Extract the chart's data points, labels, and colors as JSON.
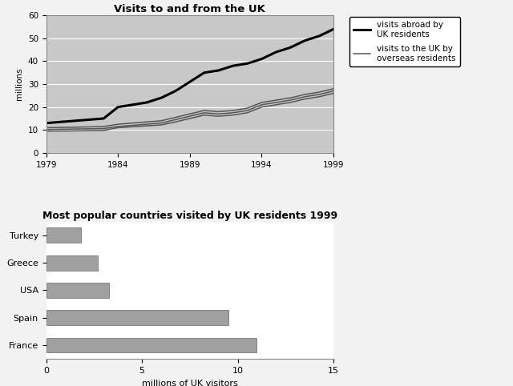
{
  "line_title": "Visits to and from the UK",
  "line_ylabel": "millions",
  "line_years": [
    1979,
    1981,
    1983,
    1984,
    1985,
    1986,
    1987,
    1988,
    1989,
    1990,
    1991,
    1992,
    1993,
    1994,
    1995,
    1996,
    1997,
    1998,
    1999
  ],
  "visits_abroad": [
    13,
    14,
    15,
    20,
    21,
    22,
    24,
    27,
    31,
    35,
    36,
    38,
    39,
    41,
    44,
    46,
    49,
    51,
    54
  ],
  "visits_to_uk_upper": [
    11,
    11.2,
    11.5,
    12.5,
    13,
    13.5,
    14,
    15.5,
    17,
    18.5,
    18,
    18.5,
    19.5,
    22,
    23,
    24,
    25.5,
    26.5,
    28
  ],
  "visits_to_uk_mid": [
    10.2,
    10.4,
    10.6,
    11.5,
    12,
    12.5,
    13,
    14.5,
    16,
    17.5,
    17,
    17.5,
    18.5,
    21,
    22,
    23,
    24.5,
    25.5,
    27
  ],
  "visits_to_uk_lower": [
    9.5,
    9.6,
    9.8,
    11,
    11.4,
    11.8,
    12.2,
    13.5,
    15,
    16.5,
    16,
    16.5,
    17.5,
    20,
    21,
    22,
    23.5,
    24.5,
    26
  ],
  "line_ylim": [
    0,
    60
  ],
  "line_yticks": [
    0,
    10,
    20,
    30,
    40,
    50,
    60
  ],
  "legend_label1": "visits abroad by\nUK residents",
  "legend_label2": "visits to the UK by\noverseas residents",
  "bar_title": "Most popular countries visited by UK residents 1999",
  "bar_xlabel": "millions of UK visitors",
  "bar_countries": [
    "Turkey",
    "Greece",
    "USA",
    "Spain",
    "France"
  ],
  "bar_values": [
    1.8,
    2.7,
    3.3,
    9.5,
    11.0
  ],
  "bar_xlim": [
    0,
    15
  ],
  "bar_xticks": [
    0,
    5,
    10,
    15
  ],
  "bar_color": "#a0a0a0",
  "plot_bg_color": "#c8c8c8",
  "fig_bg_color": "#f2f2f2",
  "line_color_abroad": "#000000",
  "line_color_to_uk": "#555555",
  "line_lw_abroad": 2.2,
  "line_lw_to_uk": 1.1
}
